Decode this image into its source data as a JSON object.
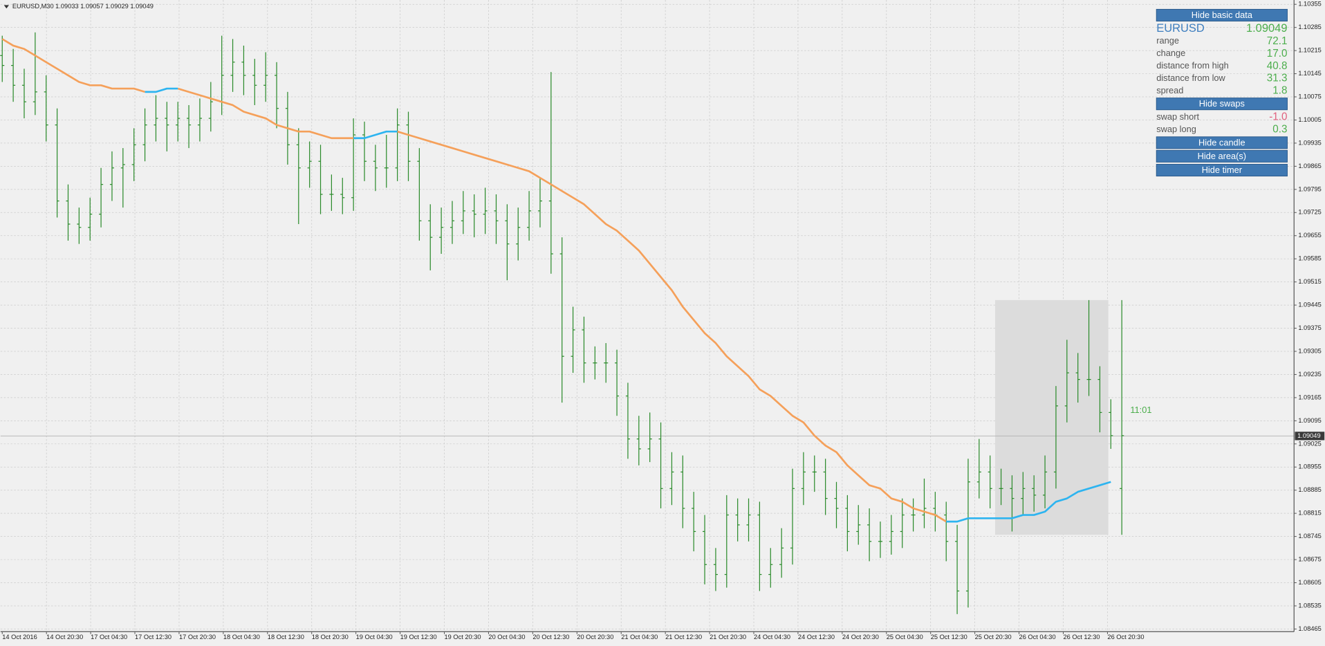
{
  "chart_data": {
    "type": "ohlc",
    "header": "EURUSD,M30  1.09033 1.09057 1.09029 1.09049",
    "ylim": [
      1.08457,
      1.10368
    ],
    "yticks": [
      1.10355,
      1.10285,
      1.10215,
      1.10145,
      1.10075,
      1.10005,
      1.09935,
      1.09865,
      1.09795,
      1.09725,
      1.09655,
      1.09585,
      1.09515,
      1.09445,
      1.09375,
      1.09305,
      1.09235,
      1.09165,
      1.09095,
      1.09025,
      1.08955,
      1.08885,
      1.08815,
      1.08745,
      1.08675,
      1.08605,
      1.08535,
      1.08465
    ],
    "xlabels": [
      "14 Oct 2016",
      "14 Oct 20:30",
      "17 Oct 04:30",
      "17 Oct 12:30",
      "17 Oct 20:30",
      "18 Oct 04:30",
      "18 Oct 12:30",
      "18 Oct 20:30",
      "19 Oct 04:30",
      "19 Oct 12:30",
      "19 Oct 20:30",
      "20 Oct 04:30",
      "20 Oct 12:30",
      "20 Oct 20:30",
      "21 Oct 04:30",
      "21 Oct 12:30",
      "21 Oct 20:30",
      "24 Oct 04:30",
      "24 Oct 12:30",
      "24 Oct 20:30",
      "25 Oct 04:30",
      "25 Oct 12:30",
      "25 Oct 20:30",
      "26 Oct 04:30",
      "26 Oct 12:30",
      "26 Oct 20:30"
    ],
    "grid": true,
    "bar_color": "#2a8a2a",
    "ohlc": [
      [
        1.102,
        1.1026,
        1.1012,
        1.1017
      ],
      [
        1.1017,
        1.1022,
        1.1006,
        1.1011
      ],
      [
        1.1011,
        1.1016,
        1.1001,
        1.1006
      ],
      [
        1.1006,
        1.1027,
        1.1002,
        1.1009
      ],
      [
        1.1009,
        1.1014,
        1.0994,
        1.0999
      ],
      [
        1.0999,
        1.1004,
        1.0971,
        1.0976
      ],
      [
        1.0976,
        1.0981,
        1.0964,
        1.0969
      ],
      [
        1.0969,
        1.0974,
        1.0963,
        1.0968
      ],
      [
        1.0968,
        1.0977,
        1.0964,
        1.0972
      ],
      [
        1.0972,
        1.0986,
        1.0968,
        1.0981
      ],
      [
        1.0981,
        1.0991,
        1.0976,
        1.0986
      ],
      [
        1.0986,
        1.0992,
        1.0974,
        1.0987
      ],
      [
        1.0987,
        1.0998,
        1.0982,
        1.0993
      ],
      [
        1.0993,
        1.1004,
        1.0988,
        1.0999
      ],
      [
        1.0999,
        1.1008,
        1.0994,
        1.1001
      ],
      [
        1.1001,
        1.1006,
        1.0991,
        1.0999
      ],
      [
        1.0999,
        1.1006,
        1.0994,
        1.1001
      ],
      [
        1.1001,
        1.1005,
        1.0992,
        1.0999
      ],
      [
        1.0999,
        1.1007,
        1.0994,
        1.1001
      ],
      [
        1.1001,
        1.1012,
        1.0997,
        1.1006
      ],
      [
        1.1006,
        1.1026,
        1.1002,
        1.1014
      ],
      [
        1.1014,
        1.1025,
        1.1009,
        1.1018
      ],
      [
        1.1018,
        1.1023,
        1.1008,
        1.1014
      ],
      [
        1.1014,
        1.1019,
        1.1005,
        1.1011
      ],
      [
        1.1011,
        1.1021,
        1.1006,
        1.1014
      ],
      [
        1.1014,
        1.1018,
        1.0998,
        1.1004
      ],
      [
        1.1004,
        1.1009,
        1.0987,
        1.0993
      ],
      [
        1.0993,
        1.0998,
        1.0969,
        1.0986
      ],
      [
        1.0986,
        1.0994,
        1.098,
        1.0988
      ],
      [
        1.0988,
        1.0993,
        1.0972,
        1.0978
      ],
      [
        1.0978,
        1.0984,
        1.0973,
        1.0978
      ],
      [
        1.0978,
        1.0983,
        1.0972,
        1.0977
      ],
      [
        1.0977,
        1.1001,
        1.0973,
        1.0996
      ],
      [
        1.0996,
        1.1,
        1.0982,
        1.0988
      ],
      [
        1.0988,
        1.0993,
        1.0979,
        1.0986
      ],
      [
        1.0986,
        1.0996,
        1.098,
        1.0986
      ],
      [
        1.0986,
        1.1004,
        1.0982,
        1.0999
      ],
      [
        1.0999,
        1.1003,
        1.0982,
        1.0988
      ],
      [
        1.0988,
        1.0992,
        1.0964,
        1.097
      ],
      [
        1.097,
        1.0975,
        1.0955,
        1.0965
      ],
      [
        1.0965,
        1.0974,
        1.096,
        1.0968
      ],
      [
        1.0968,
        1.0976,
        1.0963,
        1.097
      ],
      [
        1.097,
        1.0979,
        1.0966,
        1.0973
      ],
      [
        1.0973,
        1.0978,
        1.0965,
        1.0972
      ],
      [
        1.0972,
        1.098,
        1.0966,
        1.0973
      ],
      [
        1.0973,
        1.0978,
        1.0963,
        1.097
      ],
      [
        1.097,
        1.0975,
        1.0952,
        1.0963
      ],
      [
        1.0963,
        1.0974,
        1.0958,
        1.0968
      ],
      [
        1.0968,
        1.0979,
        1.0964,
        1.0973
      ],
      [
        1.0973,
        1.0983,
        1.0968,
        1.0976
      ],
      [
        1.0976,
        1.1015,
        1.0954,
        1.096
      ],
      [
        1.096,
        1.0965,
        1.0915,
        1.0929
      ],
      [
        1.0929,
        1.0944,
        1.0924,
        1.0937
      ],
      [
        1.0937,
        1.0941,
        1.0921,
        1.0927
      ],
      [
        1.0927,
        1.0932,
        1.0922,
        1.0927
      ],
      [
        1.0927,
        1.0933,
        1.0921,
        1.0927
      ],
      [
        1.0927,
        1.0931,
        1.0911,
        1.0917
      ],
      [
        1.0917,
        1.0921,
        1.0898,
        1.0904
      ],
      [
        1.0904,
        1.0911,
        1.0896,
        1.0901
      ],
      [
        1.0901,
        1.0912,
        1.0897,
        1.0904
      ],
      [
        1.0904,
        1.0909,
        1.0883,
        1.0889
      ],
      [
        1.0889,
        1.09,
        1.0884,
        1.0894
      ],
      [
        1.0894,
        1.0899,
        1.0877,
        1.0883
      ],
      [
        1.0883,
        1.0888,
        1.087,
        1.0876
      ],
      [
        1.0876,
        1.0881,
        1.086,
        1.0866
      ],
      [
        1.0866,
        1.0871,
        1.0858,
        1.0863
      ],
      [
        1.0863,
        1.0887,
        1.0859,
        1.0881
      ],
      [
        1.0881,
        1.0886,
        1.0873,
        1.0878
      ],
      [
        1.0878,
        1.0886,
        1.0873,
        1.0881
      ],
      [
        1.0881,
        1.0885,
        1.0858,
        1.0863
      ],
      [
        1.0863,
        1.0871,
        1.0859,
        1.0866
      ],
      [
        1.0866,
        1.0877,
        1.0862,
        1.0871
      ],
      [
        1.0871,
        1.0895,
        1.0866,
        1.0889
      ],
      [
        1.0889,
        1.09,
        1.0884,
        1.0894
      ],
      [
        1.0894,
        1.0899,
        1.0888,
        1.0894
      ],
      [
        1.0894,
        1.0898,
        1.0881,
        1.0886
      ],
      [
        1.0886,
        1.0891,
        1.0877,
        1.0883
      ],
      [
        1.0883,
        1.0887,
        1.087,
        1.0876
      ],
      [
        1.0876,
        1.0884,
        1.0872,
        1.0878
      ],
      [
        1.0878,
        1.0883,
        1.0867,
        1.0873
      ],
      [
        1.0873,
        1.0879,
        1.0868,
        1.0873
      ],
      [
        1.0873,
        1.0881,
        1.0869,
        1.0876
      ],
      [
        1.0876,
        1.0886,
        1.0871,
        1.0881
      ],
      [
        1.0881,
        1.0886,
        1.0876,
        1.0881
      ],
      [
        1.0881,
        1.0892,
        1.0877,
        1.0883
      ],
      [
        1.0883,
        1.0888,
        1.0876,
        1.0881
      ],
      [
        1.0881,
        1.0885,
        1.0867,
        1.0873
      ],
      [
        1.0873,
        1.0878,
        1.0851,
        1.0858
      ],
      [
        1.0858,
        1.0898,
        1.0853,
        1.0891
      ],
      [
        1.0891,
        1.0904,
        1.0886,
        1.0894
      ],
      [
        1.0894,
        1.0899,
        1.0883,
        1.0889
      ],
      [
        1.0889,
        1.0895,
        1.0884,
        1.0889
      ],
      [
        1.0889,
        1.0893,
        1.0876,
        1.0886
      ],
      [
        1.0886,
        1.0894,
        1.0881,
        1.0889
      ],
      [
        1.0889,
        1.0893,
        1.0882,
        1.0887
      ],
      [
        1.0887,
        1.0899,
        1.0883,
        1.0894
      ],
      [
        1.0894,
        1.092,
        1.0889,
        1.0914
      ],
      [
        1.0914,
        1.0934,
        1.0909,
        1.0924
      ],
      [
        1.0924,
        1.093,
        1.0915,
        1.0922
      ],
      [
        1.0922,
        1.0946,
        1.0917,
        1.0922
      ],
      [
        1.0922,
        1.0926,
        1.0906,
        1.0912
      ],
      [
        1.0912,
        1.0916,
        1.0901,
        1.0905
      ],
      [
        1.0889,
        1.0946,
        1.0875,
        1.0905
      ]
    ],
    "series": [
      {
        "color": "#f5a05a",
        "values": [
          1.1025,
          1.1023,
          1.1022,
          1.102,
          1.1018,
          1.1016,
          1.1014,
          1.1012,
          1.1011,
          1.1011,
          1.101,
          1.101,
          1.101,
          1.1009,
          null,
          null,
          1.101,
          1.1009,
          1.1008,
          1.1007,
          1.1006,
          1.1005,
          1.1003,
          1.1002,
          1.1001,
          1.0999,
          1.0998,
          1.0997,
          1.0997,
          1.0996,
          1.0995,
          1.0995,
          1.0995,
          null,
          null,
          null,
          1.0997,
          1.0996,
          1.0995,
          1.0994,
          1.0993,
          1.0992,
          1.0991,
          1.099,
          1.0989,
          1.0988,
          1.0987,
          1.0986,
          1.0985,
          1.0983,
          1.0981,
          1.0979,
          1.0977,
          1.0975,
          1.0972,
          1.0969,
          1.0967,
          1.0964,
          1.0961,
          1.0957,
          1.0953,
          1.0949,
          1.0944,
          1.094,
          1.0936,
          1.0933,
          1.0929,
          1.0926,
          1.0923,
          1.0919,
          1.0917,
          1.0914,
          1.0911,
          1.0909,
          1.0905,
          1.0902,
          1.09,
          1.0896,
          1.0893,
          1.089,
          1.0889,
          1.0886,
          1.0885,
          1.0883,
          1.0882,
          1.0881,
          1.0879,
          null,
          null,
          null,
          null,
          null,
          null,
          null,
          null,
          null,
          null,
          null,
          null,
          null,
          null,
          null,
          null
        ]
      },
      {
        "color": "#2db4f0",
        "values": [
          null,
          null,
          null,
          null,
          null,
          null,
          null,
          null,
          null,
          null,
          null,
          null,
          null,
          1.1009,
          1.1009,
          1.101,
          1.101,
          null,
          null,
          null,
          null,
          null,
          null,
          null,
          null,
          null,
          null,
          null,
          null,
          null,
          null,
          null,
          1.0995,
          1.0995,
          1.0996,
          1.0997,
          1.0997,
          null,
          null,
          null,
          null,
          null,
          null,
          null,
          null,
          null,
          null,
          null,
          null,
          null,
          null,
          null,
          null,
          null,
          null,
          null,
          null,
          null,
          null,
          null,
          null,
          null,
          null,
          null,
          null,
          null,
          null,
          null,
          null,
          null,
          null,
          null,
          null,
          null,
          null,
          null,
          null,
          null,
          null,
          null,
          null,
          null,
          null,
          null,
          null,
          null,
          1.0879,
          1.0879,
          1.088,
          1.088,
          1.088,
          1.088,
          1.088,
          1.0881,
          1.0881,
          1.0882,
          1.0885,
          1.0886,
          1.0888,
          1.0889,
          1.089,
          1.0891,
          null
        ]
      }
    ],
    "price": 1.09049,
    "timer": "11:01",
    "area": {
      "high": 1.0946,
      "low": 1.0875,
      "color": "#dcdcdc"
    }
  },
  "panel": {
    "buttons": [
      "Hide basic data",
      "Hide swaps",
      "Hide candle",
      "Hide area(s)",
      "Hide timer"
    ],
    "symbol": "EURUSD",
    "bid": "1.09049",
    "basic": [
      [
        "range",
        "72.1"
      ],
      [
        "change",
        "17.0"
      ],
      [
        "distance from high",
        "40.8"
      ],
      [
        "distance from low",
        "31.3"
      ],
      [
        "spread",
        "1.8"
      ]
    ],
    "swaps": [
      [
        "swap short",
        "-1.0"
      ],
      [
        "swap long",
        "0.3"
      ]
    ]
  }
}
